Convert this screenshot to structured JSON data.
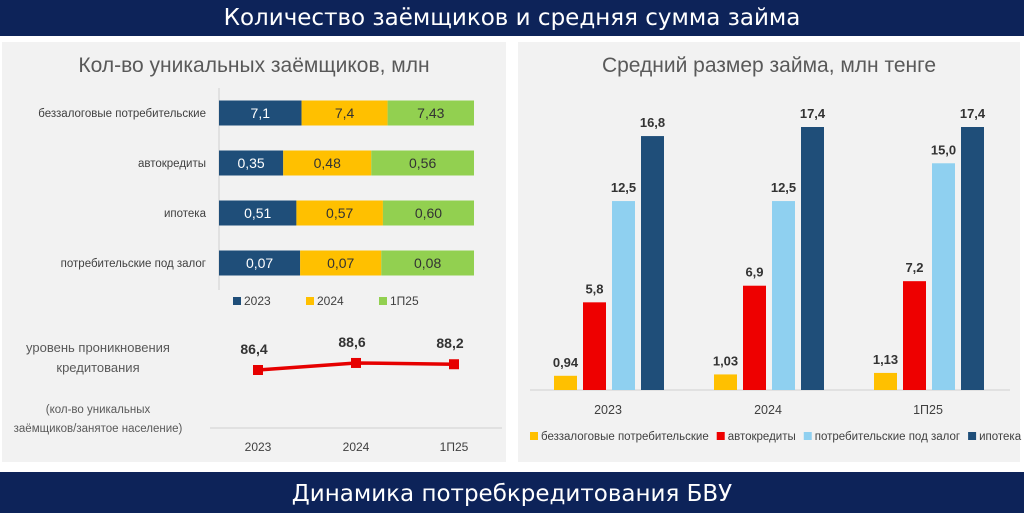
{
  "header": {
    "title": "Количество заёмщиков и средняя сумма займа"
  },
  "footer": {
    "title": "Динамика потребкредитования БВУ"
  },
  "colors": {
    "navy": "#1f4e79",
    "yellow": "#ffc000",
    "green": "#92d050",
    "red": "#ee0000",
    "lightblue": "#8fd0f0",
    "line": "#e60000"
  },
  "chart_data": [
    {
      "type": "bar",
      "stacked": "100%",
      "orientation": "horizontal",
      "title": "Кол-во уникальных заёмщиков, млн",
      "categories": [
        "беззалоговые потребительские",
        "автокредиты",
        "ипотека",
        "потребительские под залог"
      ],
      "series": [
        {
          "name": "2023",
          "labels": [
            "7,1",
            "0,35",
            "0,51",
            "0,07"
          ],
          "values": [
            7.1,
            0.35,
            0.51,
            0.07
          ]
        },
        {
          "name": "2024",
          "labels": [
            "7,4",
            "0,48",
            "0,57",
            "0,07"
          ],
          "values": [
            7.4,
            0.48,
            0.57,
            0.07
          ]
        },
        {
          "name": "1П25",
          "labels": [
            "7,43",
            "0,56",
            "0,60",
            "0,08"
          ],
          "values": [
            7.43,
            0.56,
            0.6,
            0.08
          ]
        }
      ],
      "legend": "bottom"
    },
    {
      "type": "line",
      "label_lines": [
        "уровень проникновения",
        "кредитования"
      ],
      "note_lines": [
        "(кол-во уникальных",
        "заёмщиков/занятое население)"
      ],
      "categories": [
        "2023",
        "2024",
        "1П25"
      ],
      "labels": [
        "86,4",
        "88,6",
        "88,2"
      ],
      "values": [
        86.4,
        88.6,
        88.2
      ]
    },
    {
      "type": "bar",
      "title": "Средний размер займа, млн тенге",
      "categories": [
        "2023",
        "2024",
        "1П25"
      ],
      "series": [
        {
          "name": "беззалоговые потребительские",
          "labels": [
            "0,94",
            "1,03",
            "1,13"
          ],
          "values": [
            0.94,
            1.03,
            1.13
          ]
        },
        {
          "name": "автокредиты",
          "labels": [
            "5,8",
            "6,9",
            "7,2"
          ],
          "values": [
            5.8,
            6.9,
            7.2
          ]
        },
        {
          "name": "потребительские под залог",
          "labels": [
            "12,5",
            "12,5",
            "15,0"
          ],
          "values": [
            12.5,
            12.5,
            15.0
          ]
        },
        {
          "name": "ипотека",
          "labels": [
            "16,8",
            "17,4",
            "17,4"
          ],
          "values": [
            16.8,
            17.4,
            17.4
          ]
        }
      ],
      "ylim": [
        0,
        17.4
      ],
      "legend": "bottom"
    }
  ]
}
